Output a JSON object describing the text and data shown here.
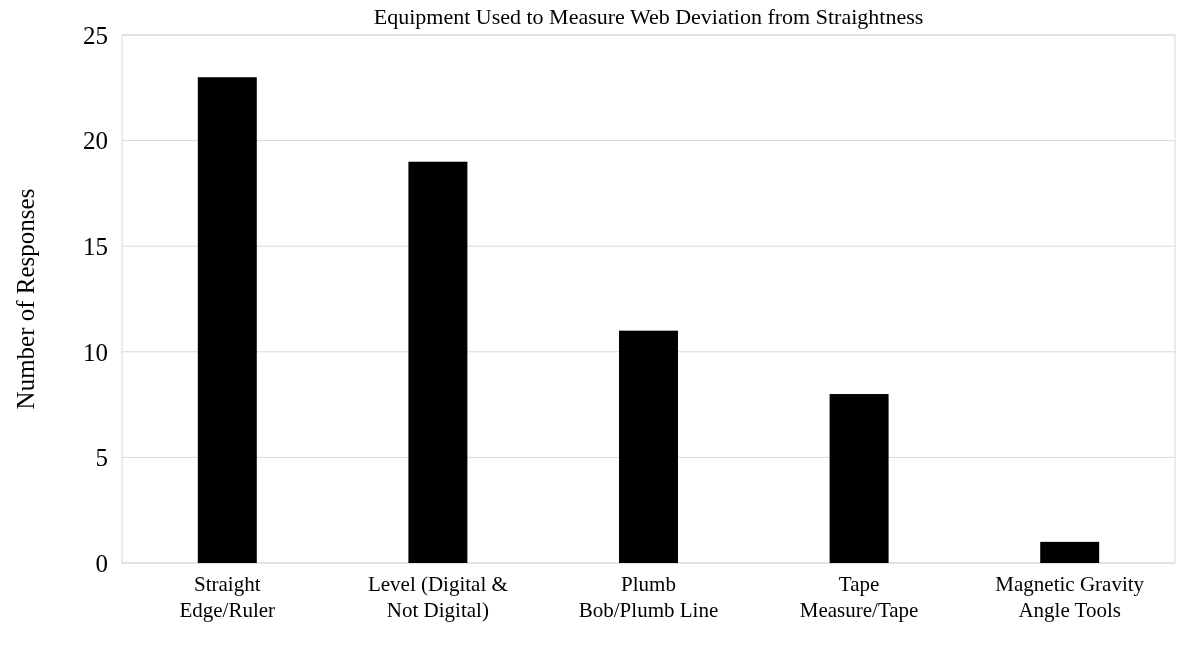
{
  "chart_data": {
    "type": "bar",
    "title": "Equipment Used to Measure Web Deviation from Straightness",
    "ylabel": "Number of Responses",
    "categories": [
      "Straight\nEdge/Ruler",
      "Level (Digital &\nNot Digital)",
      "Plumb\nBob/Plumb Line",
      "Tape\nMeasure/Tape",
      "Magnetic Gravity\nAngle Tools"
    ],
    "values": [
      23,
      19,
      11,
      8,
      1
    ],
    "color": "#000000",
    "ylim": [
      0,
      25
    ],
    "yticks": [
      0,
      5,
      10,
      15,
      20,
      25
    ],
    "grid": "y"
  }
}
